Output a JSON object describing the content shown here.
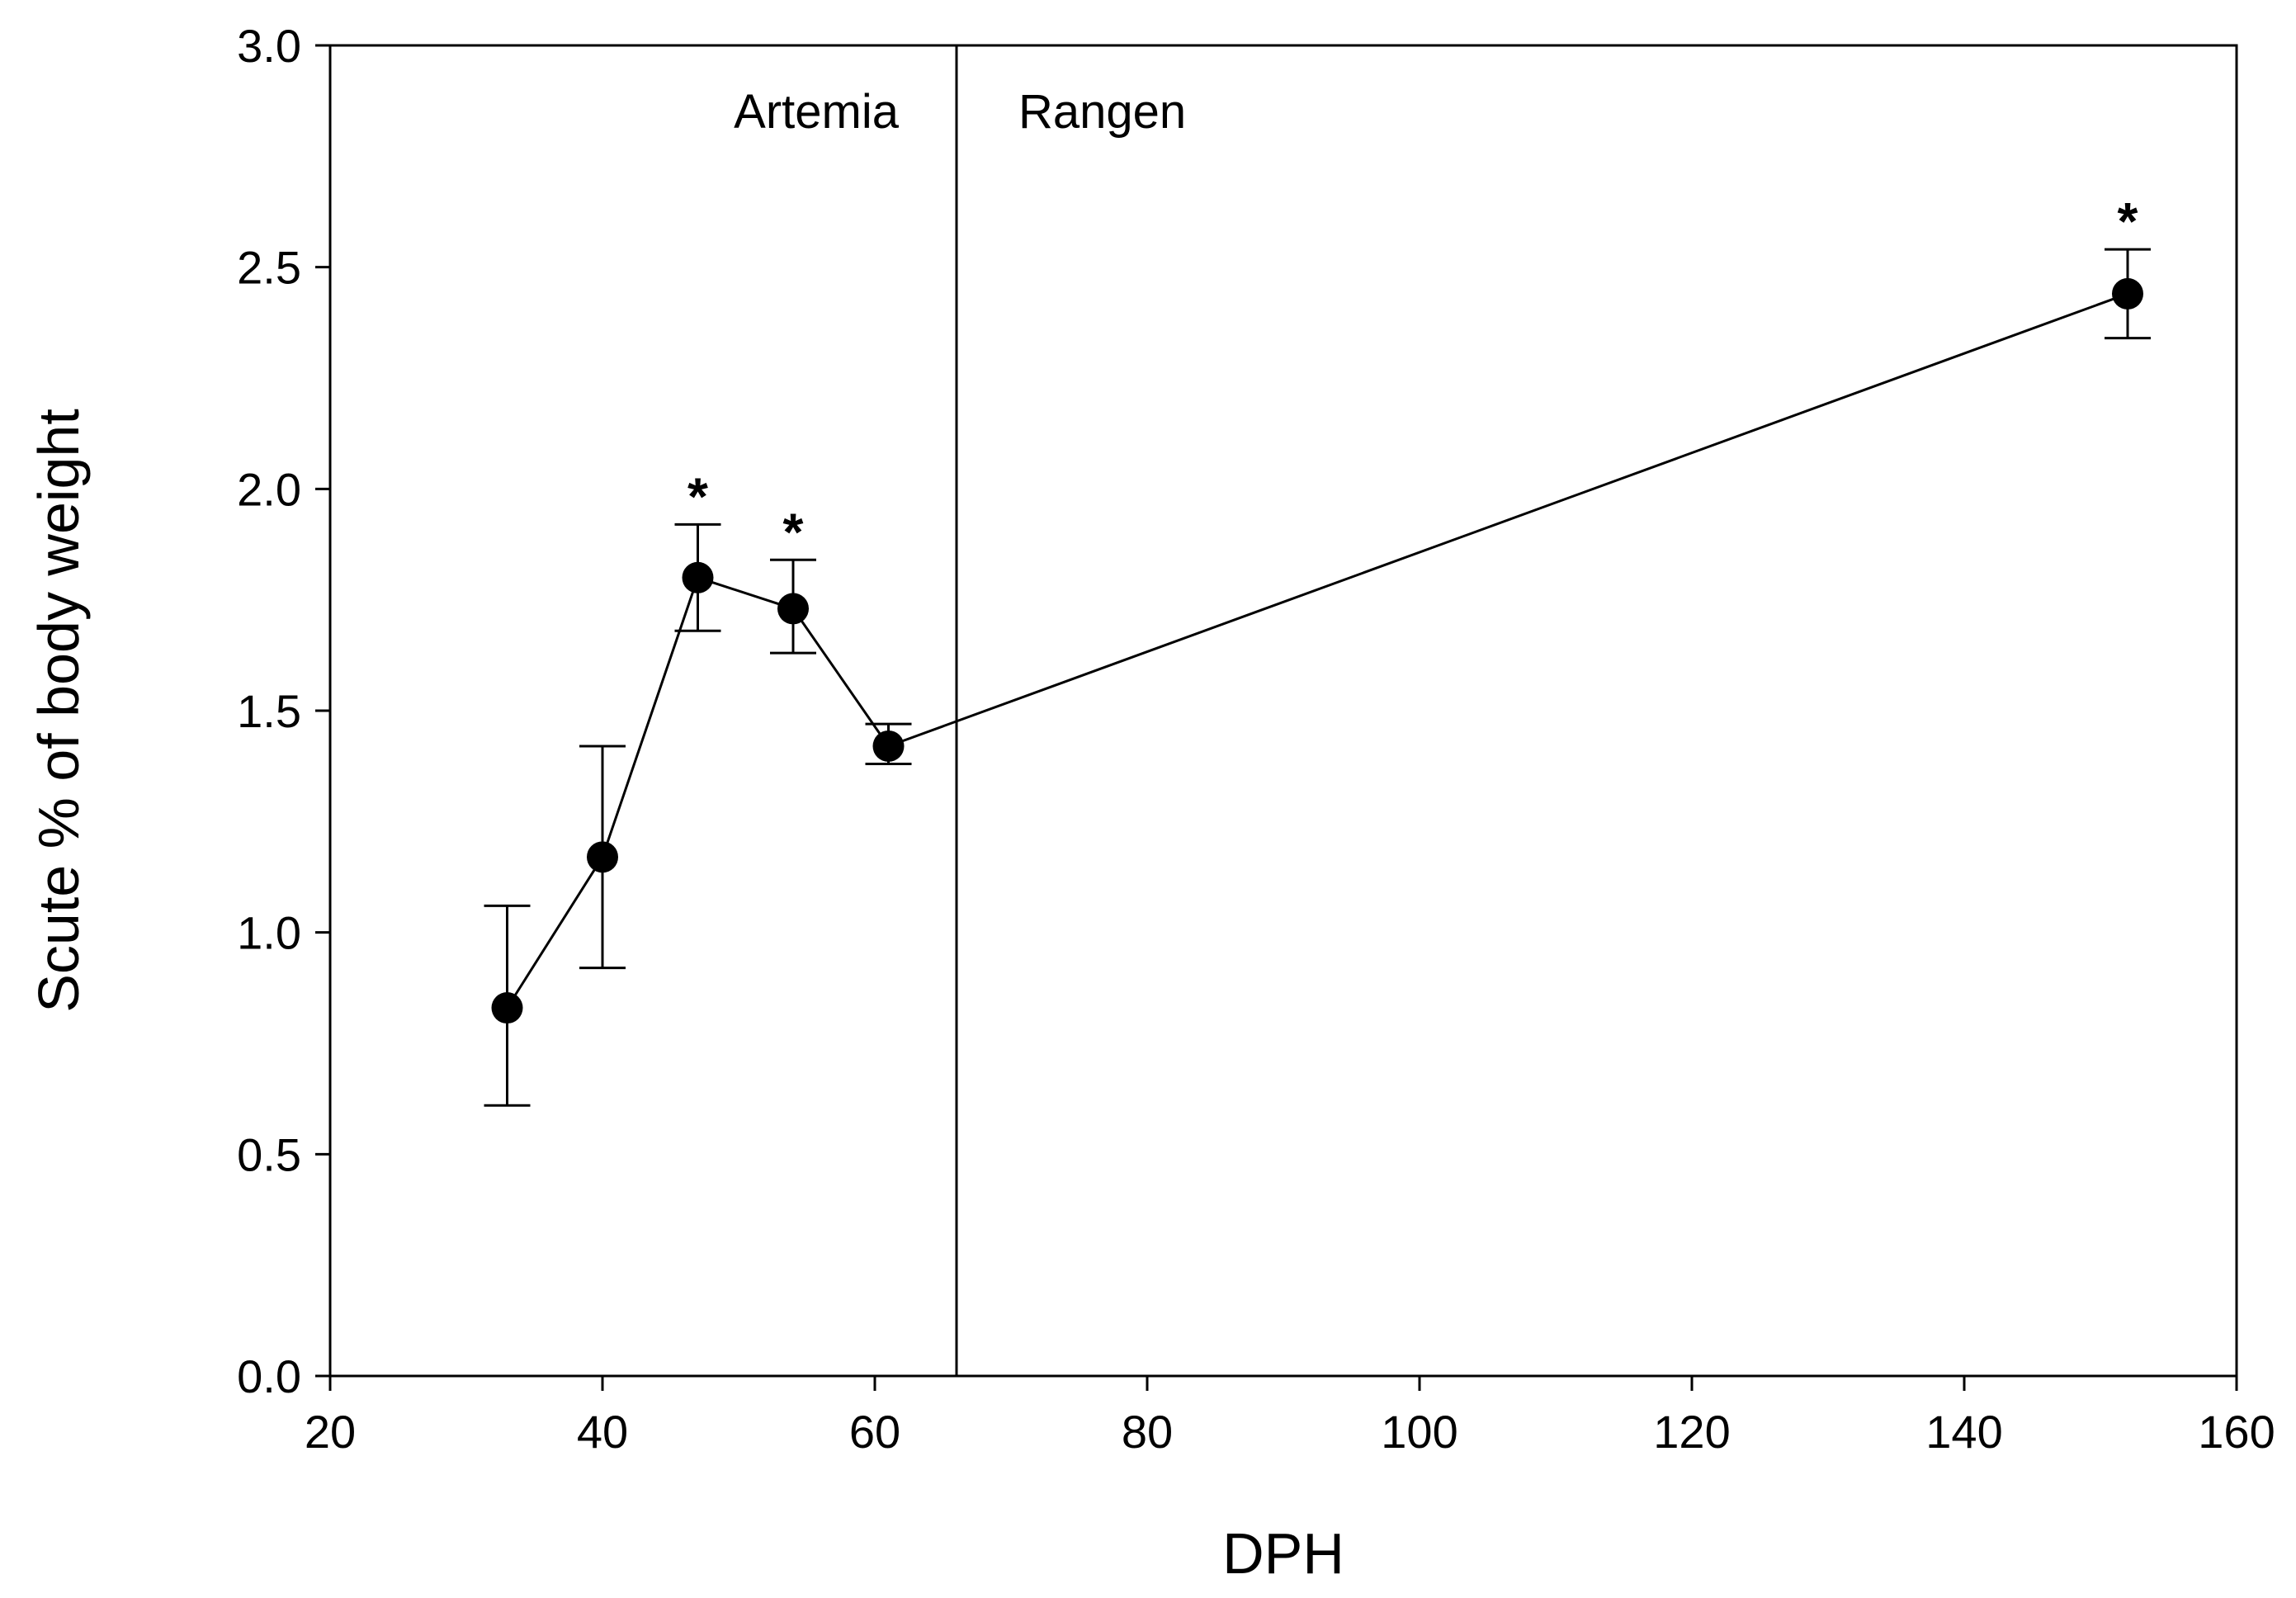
{
  "chart_data": {
    "type": "scatter",
    "title": "",
    "xlabel": "DPH",
    "ylabel": "Scute % of body weight",
    "xlim": [
      20,
      160
    ],
    "ylim": [
      0.0,
      3.0
    ],
    "x_ticks": [
      20,
      40,
      60,
      80,
      100,
      120,
      140,
      160
    ],
    "y_ticks": [
      0.0,
      0.5,
      1.0,
      1.5,
      2.0,
      2.5,
      3.0
    ],
    "y_tick_labels": [
      "0.0",
      "0.5",
      "1.0",
      "1.5",
      "2.0",
      "2.5",
      "3.0"
    ],
    "grid": false,
    "legend": "none",
    "series": [
      {
        "name": "Scute % of body weight",
        "marker": "filled-circle",
        "line": "solid",
        "color": "#000000",
        "points": [
          {
            "x": 33,
            "y": 0.83,
            "err_low": 0.61,
            "err_high": 1.06,
            "significant": false
          },
          {
            "x": 40,
            "y": 1.17,
            "err_low": 0.92,
            "err_high": 1.42,
            "significant": false
          },
          {
            "x": 47,
            "y": 1.8,
            "err_low": 1.68,
            "err_high": 1.92,
            "significant": true
          },
          {
            "x": 54,
            "y": 1.73,
            "err_low": 1.63,
            "err_high": 1.84,
            "significant": true
          },
          {
            "x": 61,
            "y": 1.42,
            "err_low": 1.38,
            "err_high": 1.47,
            "significant": false
          },
          {
            "x": 152,
            "y": 2.44,
            "err_low": 2.34,
            "err_high": 2.54,
            "significant": true
          }
        ]
      }
    ],
    "significance_marker": "*",
    "divider": {
      "x": 66
    },
    "regions": [
      {
        "label": "Artemia",
        "side": "left"
      },
      {
        "label": "Rangen",
        "side": "right"
      }
    ]
  }
}
